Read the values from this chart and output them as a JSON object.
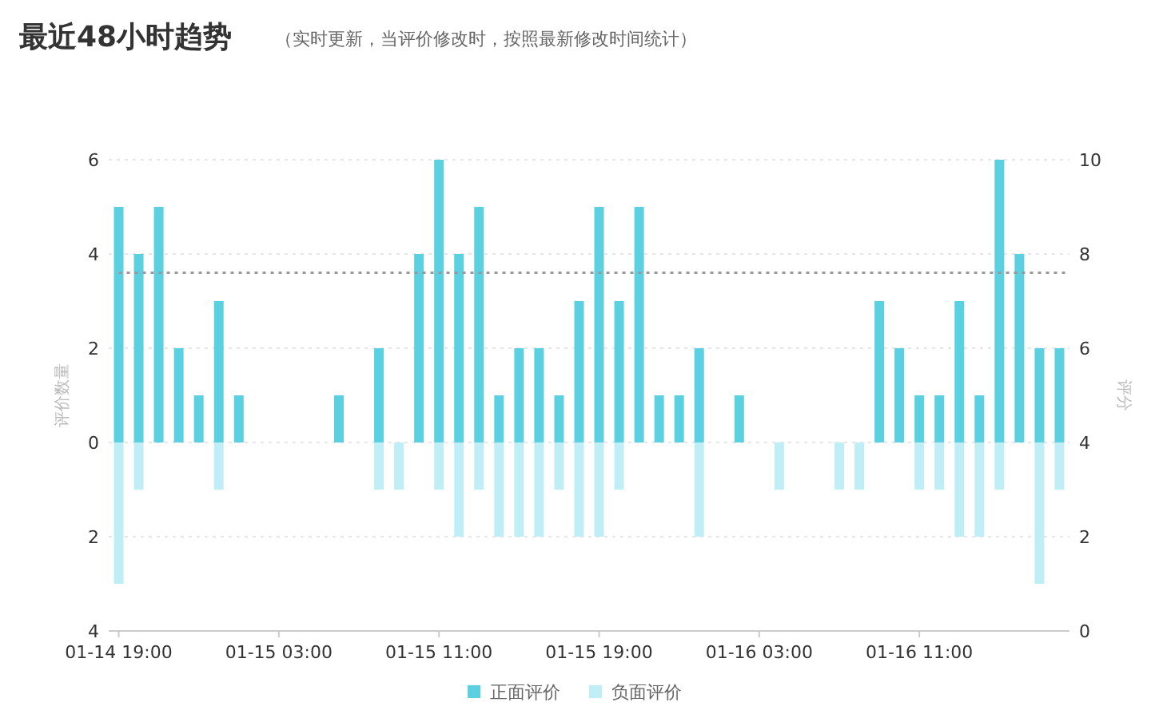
{
  "chart_data": {
    "type": "bar",
    "title": "最近48小时趋势",
    "subtitle": "（实时更新，当评价修改时，按照最新修改时间统计）",
    "ylabel": "评价数量",
    "y2label": "评分",
    "categories": [
      "01-14 19:00",
      null,
      null,
      null,
      null,
      null,
      null,
      null,
      "01-15 03:00",
      null,
      null,
      null,
      null,
      null,
      null,
      null,
      "01-15 11:00",
      null,
      null,
      null,
      null,
      null,
      null,
      null,
      "01-15 19:00",
      null,
      null,
      null,
      null,
      null,
      null,
      null,
      "01-16 03:00",
      null,
      null,
      null,
      null,
      null,
      null,
      null,
      "01-16 11:00",
      null,
      null,
      null,
      null,
      null,
      null,
      null
    ],
    "series": [
      {
        "name": "正面评价",
        "color": "#5ad0e0",
        "values": [
          5,
          4,
          5,
          2,
          1,
          3,
          1,
          null,
          null,
          null,
          null,
          1,
          null,
          2,
          null,
          4,
          6,
          4,
          5,
          1,
          2,
          2,
          1,
          3,
          5,
          3,
          5,
          1,
          1,
          2,
          null,
          1,
          null,
          null,
          null,
          null,
          null,
          null,
          3,
          2,
          1,
          1,
          3,
          1,
          6,
          4,
          2,
          2
        ]
      },
      {
        "name": "负面评价",
        "color": "#c0eef7",
        "values": [
          -3,
          -1,
          null,
          null,
          null,
          -1,
          null,
          null,
          null,
          null,
          null,
          null,
          null,
          -1,
          -1,
          null,
          -1,
          -2,
          -1,
          -2,
          -2,
          -2,
          -1,
          -2,
          -2,
          -1,
          null,
          null,
          null,
          -2,
          null,
          null,
          null,
          -1,
          null,
          null,
          -1,
          -1,
          null,
          null,
          -1,
          -1,
          -2,
          -2,
          -1,
          null,
          -3,
          -1
        ]
      }
    ],
    "ylim": [
      -4,
      6
    ],
    "yticks": [
      {
        "value": -4,
        "label": "4"
      },
      {
        "value": -2,
        "label": "2"
      },
      0,
      2,
      4,
      6
    ],
    "y2lim": [
      0,
      10
    ],
    "y2ticks": [
      0,
      2,
      4,
      6,
      8,
      10
    ],
    "ref_lines": [
      {
        "axis": "y2",
        "value": 7.6,
        "color": "#999999",
        "line_style": "dotted"
      }
    ],
    "grid": "y",
    "legend": "bottom"
  }
}
